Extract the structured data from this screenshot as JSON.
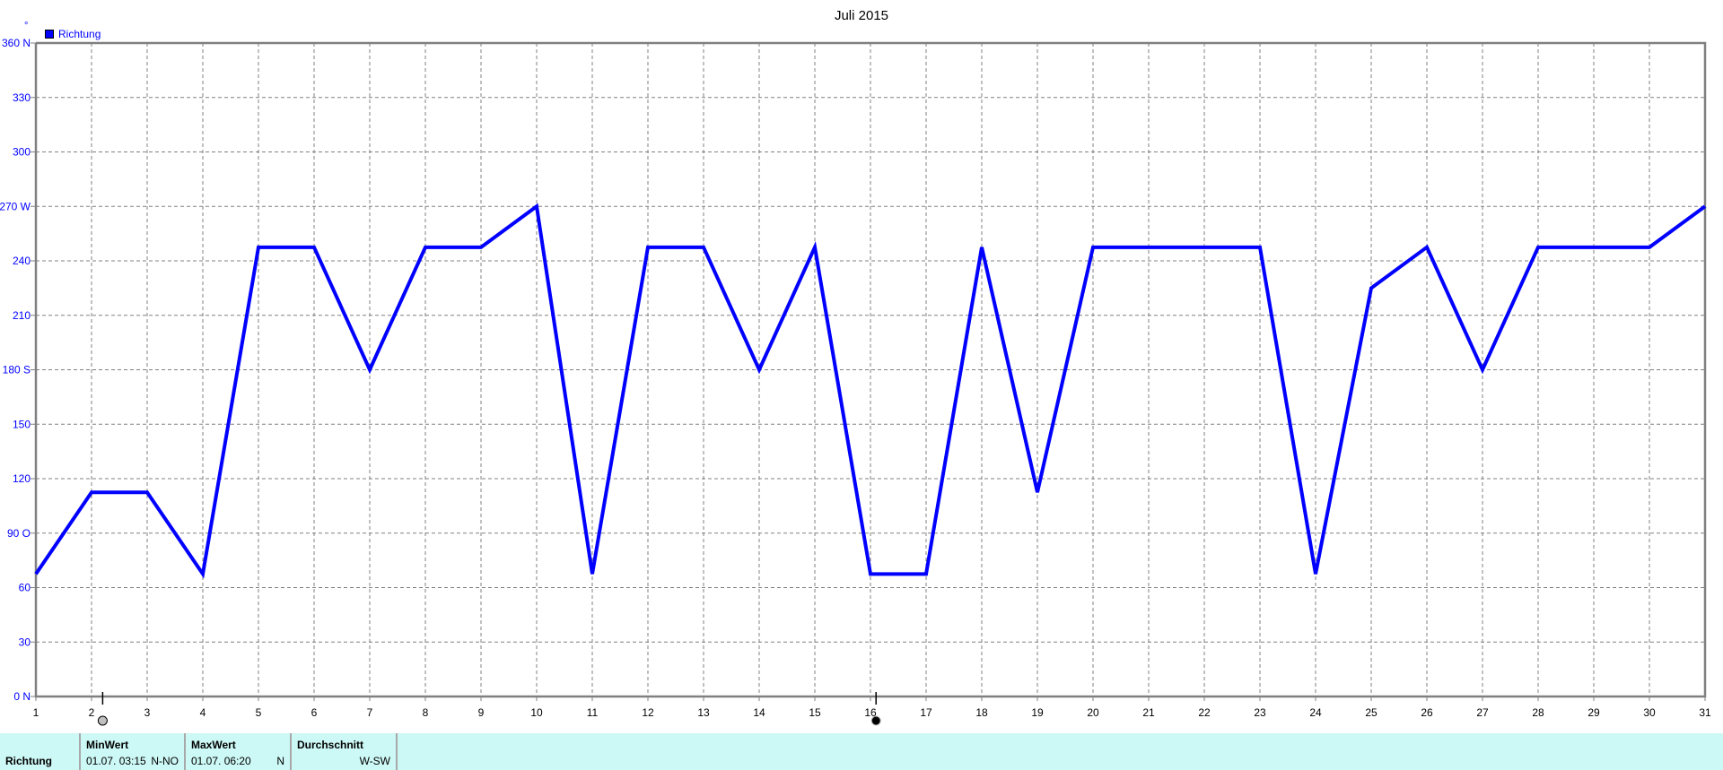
{
  "chart_data": {
    "type": "line",
    "title": "Juli 2015",
    "ylabel": "°",
    "legend": {
      "entries": [
        {
          "name": "Richtung",
          "color": "#0000ff"
        }
      ],
      "placement": "top-left"
    },
    "x": [
      1,
      2,
      3,
      4,
      5,
      6,
      7,
      8,
      9,
      10,
      11,
      12,
      13,
      14,
      15,
      16,
      17,
      18,
      19,
      20,
      21,
      22,
      23,
      24,
      25,
      26,
      27,
      28,
      29,
      30,
      31
    ],
    "xlim": [
      1,
      31
    ],
    "ylim": [
      0,
      360
    ],
    "yticks": [
      0,
      30,
      60,
      90,
      120,
      150,
      180,
      210,
      240,
      270,
      300,
      330,
      360
    ],
    "ytick_labels": [
      "0  N",
      "30",
      "60",
      "90  O",
      "120",
      "150",
      "180 S",
      "210",
      "240",
      "270 W",
      "300",
      "330",
      "360 N"
    ],
    "grid": true,
    "series": [
      {
        "name": "Richtung",
        "color": "#0000ff",
        "values": [
          67.5,
          112.5,
          112.5,
          67.5,
          247.5,
          247.5,
          180,
          247.5,
          247.5,
          270,
          67.5,
          247.5,
          247.5,
          180,
          247.5,
          67.5,
          67.5,
          247.5,
          112.5,
          247.5,
          247.5,
          247.5,
          247.5,
          67.5,
          225,
          247.5,
          180,
          247.5,
          247.5,
          247.5,
          270
        ]
      }
    ],
    "markers": [
      {
        "kind": "min",
        "x": 2.2,
        "color": "#c0c0c0"
      },
      {
        "kind": "max",
        "x": 16.1,
        "color": "#000000"
      }
    ]
  },
  "footer": {
    "row_label": "Richtung",
    "min": {
      "header": "MinWert",
      "time": "01.07.  03:15",
      "value": "N-NO"
    },
    "max": {
      "header": "MaxWert",
      "time": "01.07.  06:20",
      "value": "N"
    },
    "avg": {
      "header": "Durchschnitt",
      "value": "W-SW"
    }
  }
}
